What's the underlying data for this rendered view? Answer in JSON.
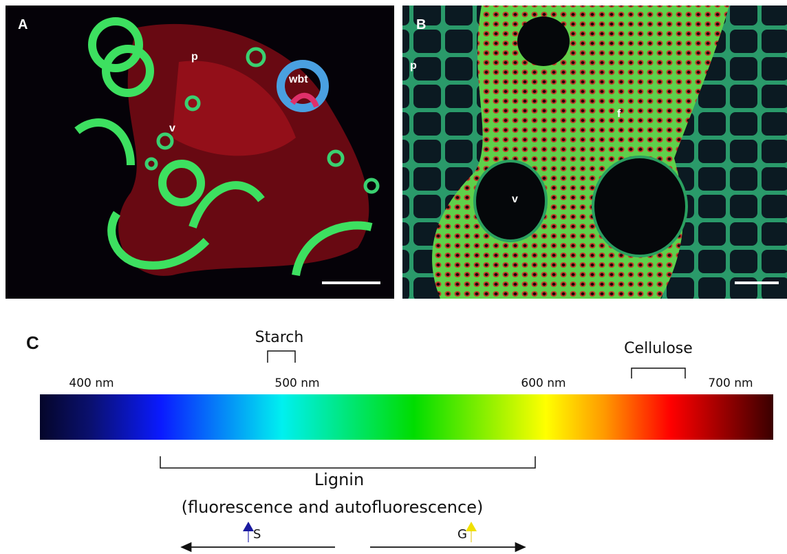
{
  "panel_a": {
    "label": "A",
    "annotations": [
      "p",
      "wbt",
      "v"
    ]
  },
  "panel_b": {
    "label": "B",
    "annotations": [
      "p",
      "f",
      "v"
    ]
  },
  "panel_c": {
    "label": "C",
    "wavelengths": [
      "400 nm",
      "500 nm",
      "600 nm",
      "700 nm"
    ],
    "starch": "Starch",
    "cellulose": "Cellulose",
    "lignin": "Lignin",
    "lignin_note": "(fluorescence and autofluorescence)",
    "s_label": "S",
    "g_label": "G"
  }
}
